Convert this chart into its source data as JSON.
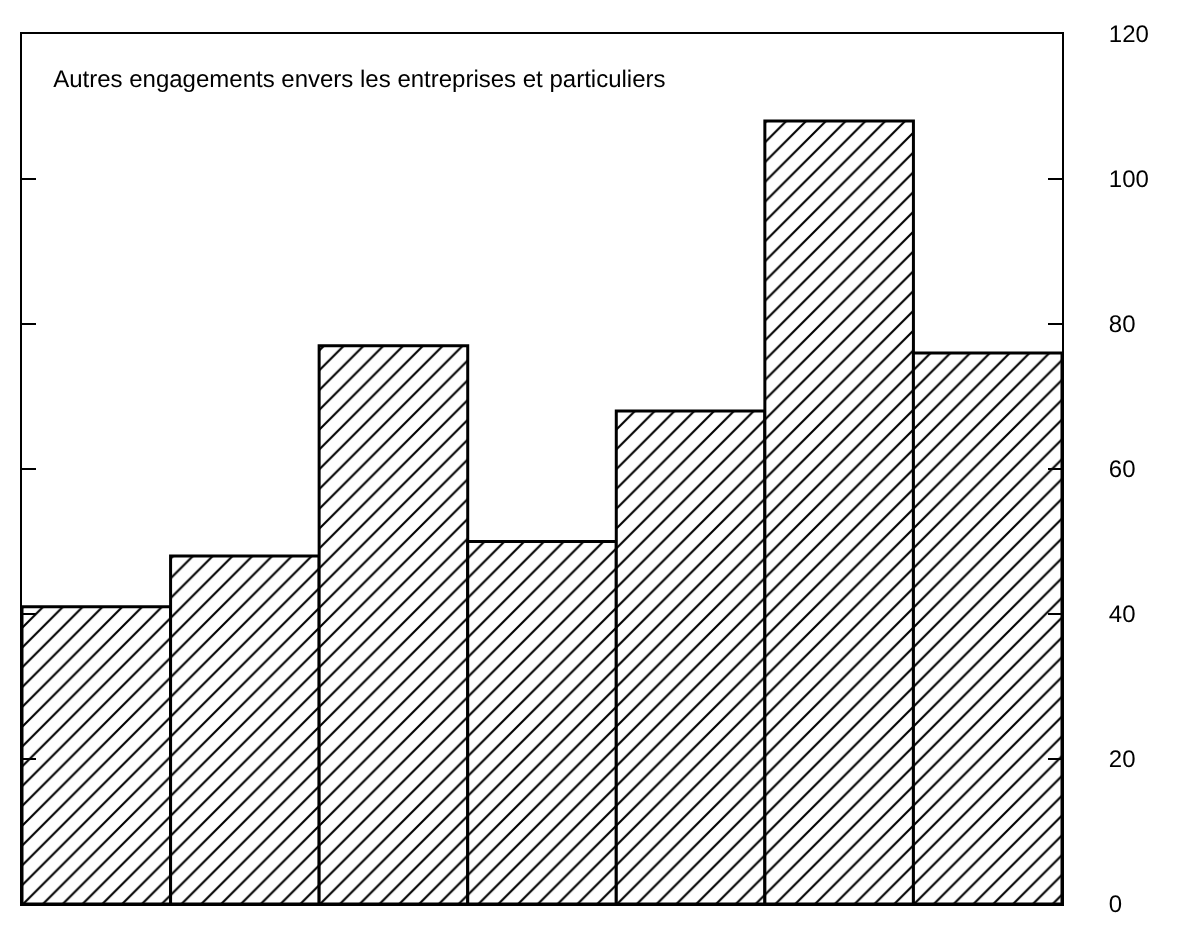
{
  "chart_data": {
    "type": "bar",
    "title": "Autres engagements envers les entreprises et particuliers",
    "categories": [
      null,
      null,
      null,
      null,
      null,
      null,
      null
    ],
    "values": [
      41,
      48,
      77,
      50,
      68,
      108,
      76
    ],
    "color": "#000000",
    "ylim": [
      0,
      120
    ],
    "yticks": [
      0,
      20,
      40,
      60,
      80,
      100,
      120
    ],
    "grid": false,
    "tick_labels": "y"
  }
}
